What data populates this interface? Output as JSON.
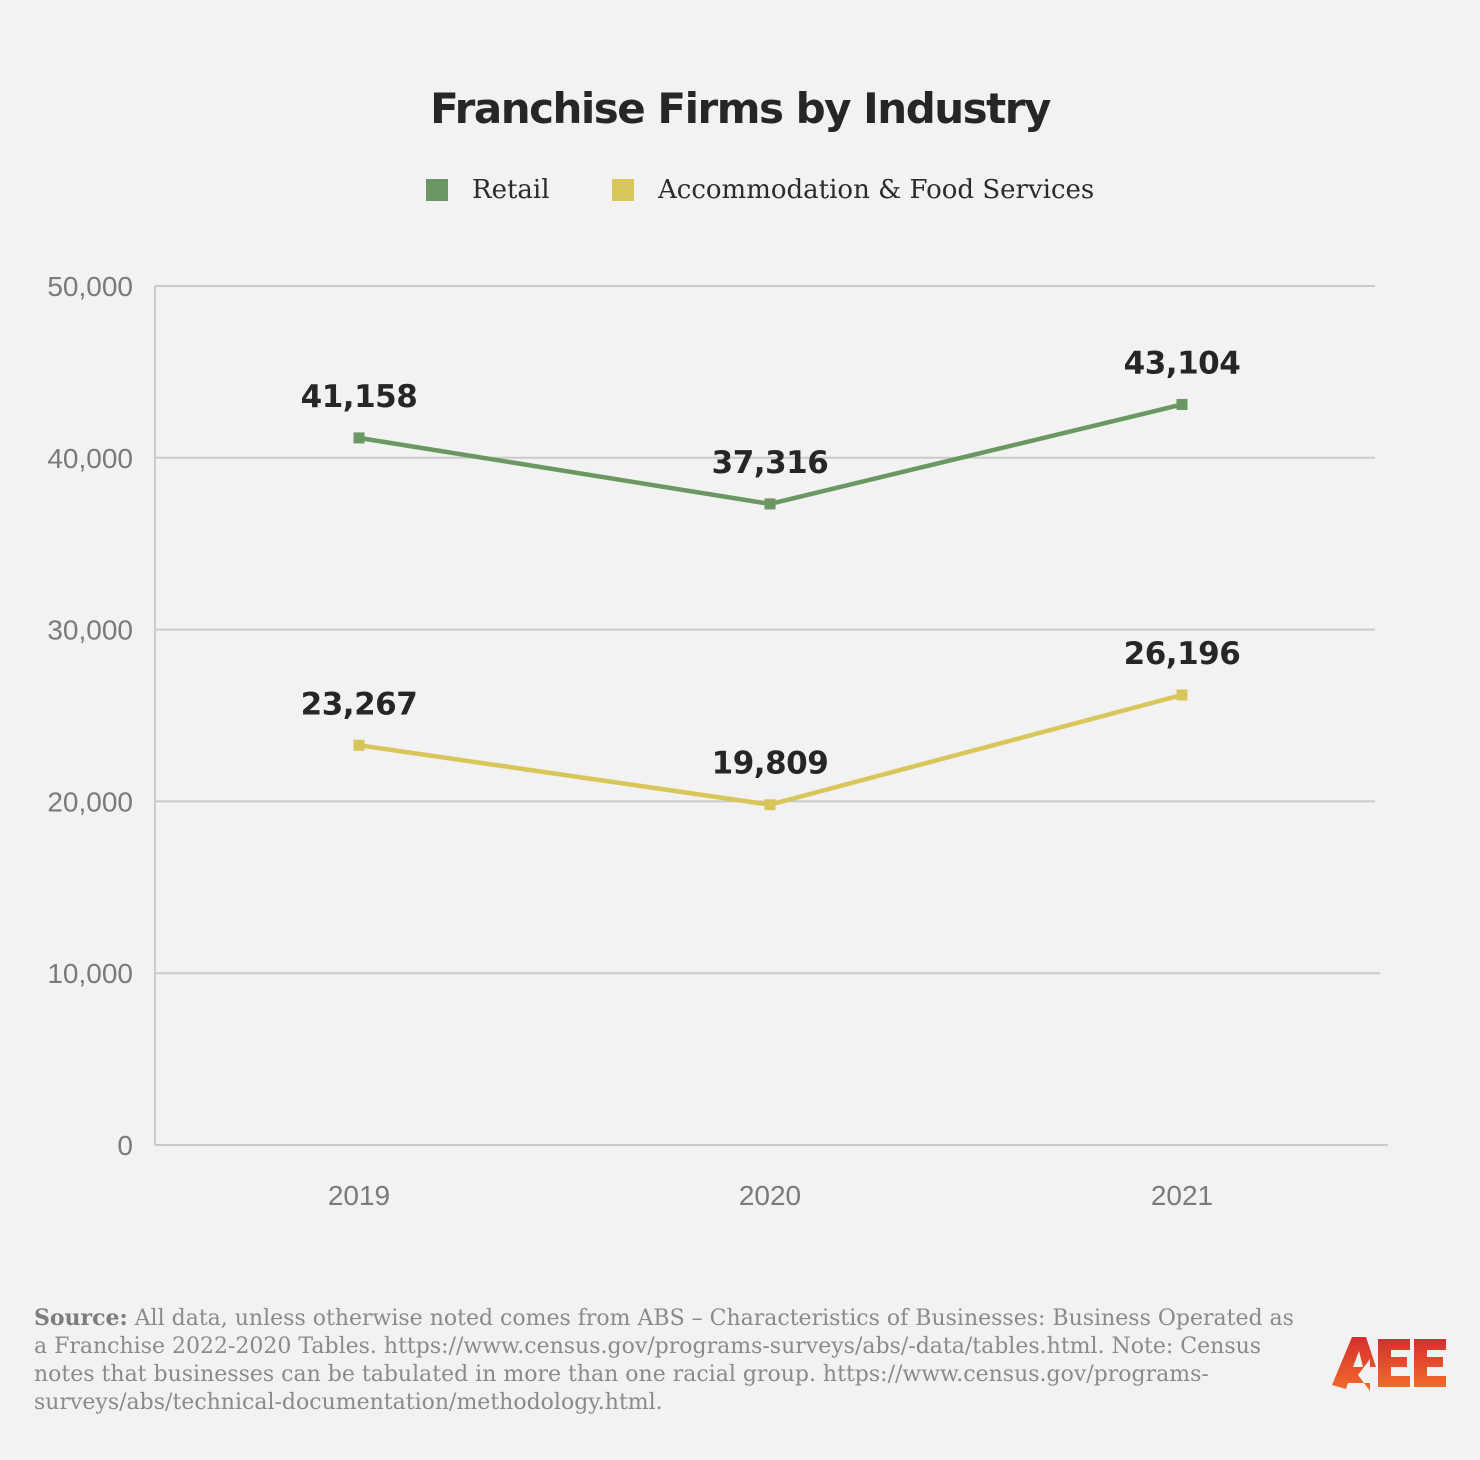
{
  "chart_data": {
    "type": "line",
    "title": "Franchise Firms by Industry",
    "categories": [
      "2019",
      "2020",
      "2021"
    ],
    "series": [
      {
        "name": "Retail",
        "color": "#6a9762",
        "values": [
          41158,
          37316,
          43104
        ],
        "labels": [
          "41,158",
          "37,316",
          "43,104"
        ]
      },
      {
        "name": "Accommodation & Food Services",
        "color": "#d9c65a",
        "values": [
          23267,
          19809,
          26196
        ],
        "labels": [
          "23,267",
          "19,809",
          "26,196"
        ]
      }
    ],
    "ylim": [
      0,
      50000
    ],
    "yticks": [
      0,
      10000,
      20000,
      30000,
      40000,
      50000
    ],
    "ytick_labels": [
      "0",
      "10,000",
      "20,000",
      "30,000",
      "40,000",
      "50,000"
    ],
    "xlabel": "",
    "ylabel": "",
    "grid": true,
    "legend_position": "top-center"
  },
  "footer": {
    "source_label": "Source:",
    "source_text": " All data, unless otherwise noted comes from ABS – Characteristics of Businesses: Business Operated as a Franchise 2022-2020 Tables. https://www.census.gov/programs-surveys/abs/-data/tables.html. Note: Census notes that businesses can be tabulated in more than one racial group. https://www.census.gov/programs-surveys/abs/technical-documentation/methodology.html."
  },
  "logo": {
    "text": "AEE",
    "color": "#e8412b"
  }
}
